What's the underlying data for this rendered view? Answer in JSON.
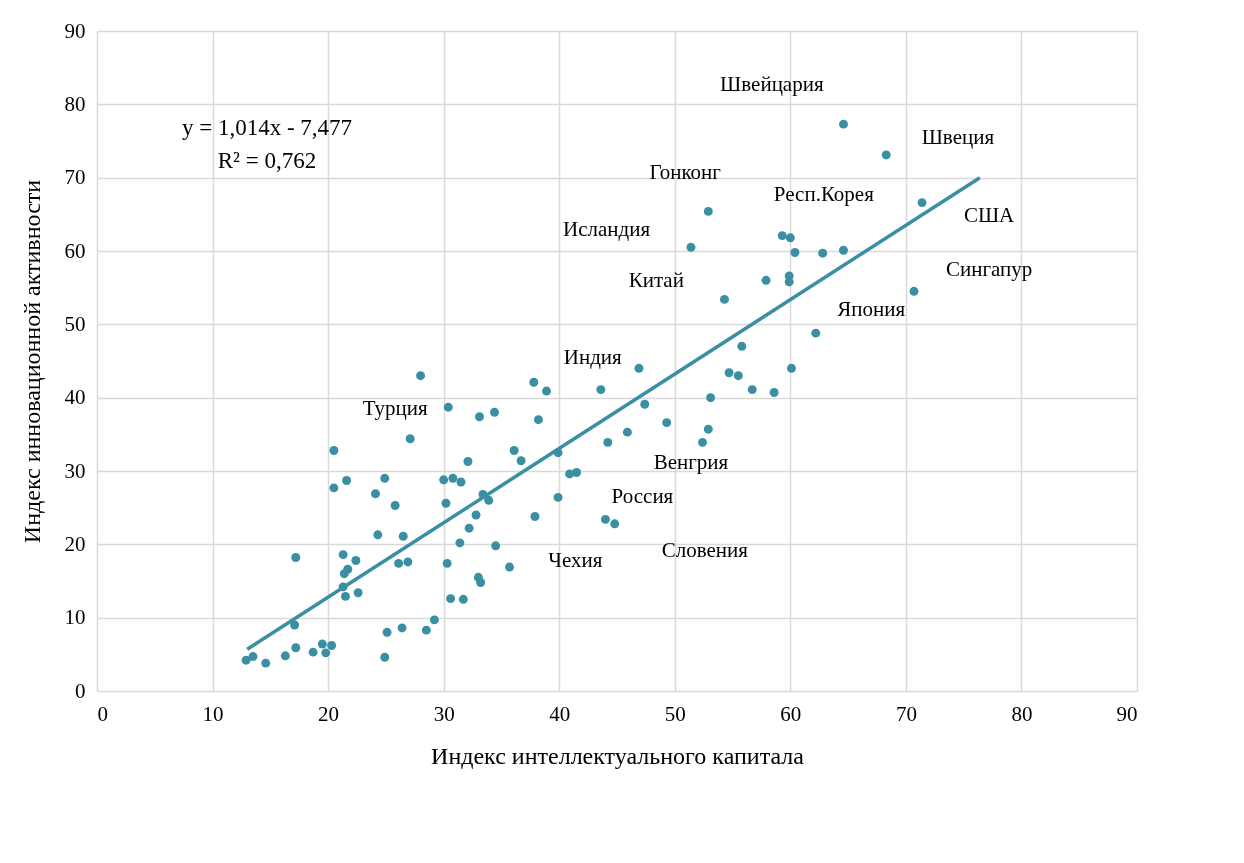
{
  "chart_data": {
    "type": "scatter",
    "xlabel": "Индекс интеллектуального капитала",
    "ylabel": "Индекс инновационной активности",
    "xlim": [
      0,
      90
    ],
    "ylim": [
      0,
      90
    ],
    "xticks": [
      0,
      10,
      20,
      30,
      40,
      50,
      60,
      70,
      80,
      90
    ],
    "yticks": [
      0,
      10,
      20,
      30,
      40,
      50,
      60,
      70,
      80,
      90
    ],
    "grid": true,
    "series": [
      {
        "type": "scatter",
        "marker": "circle",
        "color": "#3a8fa3",
        "x": [
          28.0,
          30.4,
          33.1,
          34.4,
          27.1,
          20.5,
          36.1,
          36.7,
          32.1,
          20.5,
          21.6,
          24.9,
          30.0,
          30.8,
          31.5,
          24.1,
          25.8,
          30.2,
          33.4,
          33.9,
          32.8,
          32.2,
          24.3,
          26.5,
          31.4,
          34.5,
          17.2,
          21.3,
          22.4,
          21.7,
          21.4,
          26.1,
          26.9,
          30.3,
          35.7,
          33.0,
          33.2,
          21.3,
          21.5,
          22.6,
          30.6,
          31.7,
          17.1,
          25.1,
          26.4,
          28.5,
          29.2,
          12.9,
          13.5,
          14.6,
          16.3,
          17.2,
          18.7,
          19.5,
          20.3,
          19.8,
          24.9,
          37.8,
          38.9,
          38.2,
          43.6,
          46.9,
          47.4,
          49.3,
          45.9,
          44.2,
          39.9,
          40.9,
          41.5,
          39.9,
          37.9,
          44.0,
          44.8,
          52.4,
          52.9,
          53.1,
          54.7,
          55.5,
          55.8,
          56.7,
          58.6,
          60.1,
          64.6,
          68.3,
          71.4,
          52.9,
          51.4,
          59.3,
          60.0,
          60.4,
          62.8,
          64.6,
          57.9,
          59.9,
          59.9,
          54.3,
          70.7,
          62.2
        ],
        "values": [
          43.0,
          38.7,
          37.4,
          38.0,
          34.4,
          32.8,
          32.8,
          31.4,
          31.3,
          27.7,
          28.7,
          29.0,
          28.8,
          29.0,
          28.5,
          26.9,
          25.3,
          25.6,
          26.8,
          26.0,
          24.0,
          22.2,
          21.3,
          21.1,
          20.2,
          19.8,
          18.2,
          18.6,
          17.8,
          16.6,
          16.0,
          17.4,
          17.6,
          17.4,
          16.9,
          15.5,
          14.8,
          14.2,
          12.9,
          13.4,
          12.6,
          12.5,
          9.0,
          8.0,
          8.6,
          8.3,
          9.7,
          4.2,
          4.7,
          3.8,
          4.8,
          5.9,
          5.3,
          6.4,
          6.2,
          5.2,
          4.6,
          42.1,
          40.9,
          37.0,
          41.1,
          44.0,
          39.1,
          36.6,
          35.3,
          33.9,
          32.5,
          29.6,
          29.8,
          26.4,
          23.8,
          23.4,
          22.8,
          33.9,
          35.7,
          40.0,
          43.4,
          43.0,
          47.0,
          41.1,
          40.7,
          44.0,
          77.3,
          73.1,
          66.6,
          65.4,
          60.5,
          62.1,
          61.8,
          59.8,
          59.7,
          60.1,
          56.0,
          56.6,
          55.8,
          53.4,
          54.5,
          48.8
        ]
      },
      {
        "type": "line",
        "color": "#3a8fa3",
        "x": [
          13,
          76.4
        ],
        "values": [
          5.7,
          70.0
        ]
      }
    ],
    "annotations": [
      "y = 1,014x - 7,477",
      "R² = 0,762",
      "Швейцария",
      "Швеция",
      "Гонконг",
      "Респ.Корея",
      "США",
      "Исландия",
      "Китай",
      "Сингапур",
      "Япония",
      "Индия",
      "Турция",
      "Венгрия",
      "Россия",
      "Словения",
      "Чехия"
    ]
  }
}
